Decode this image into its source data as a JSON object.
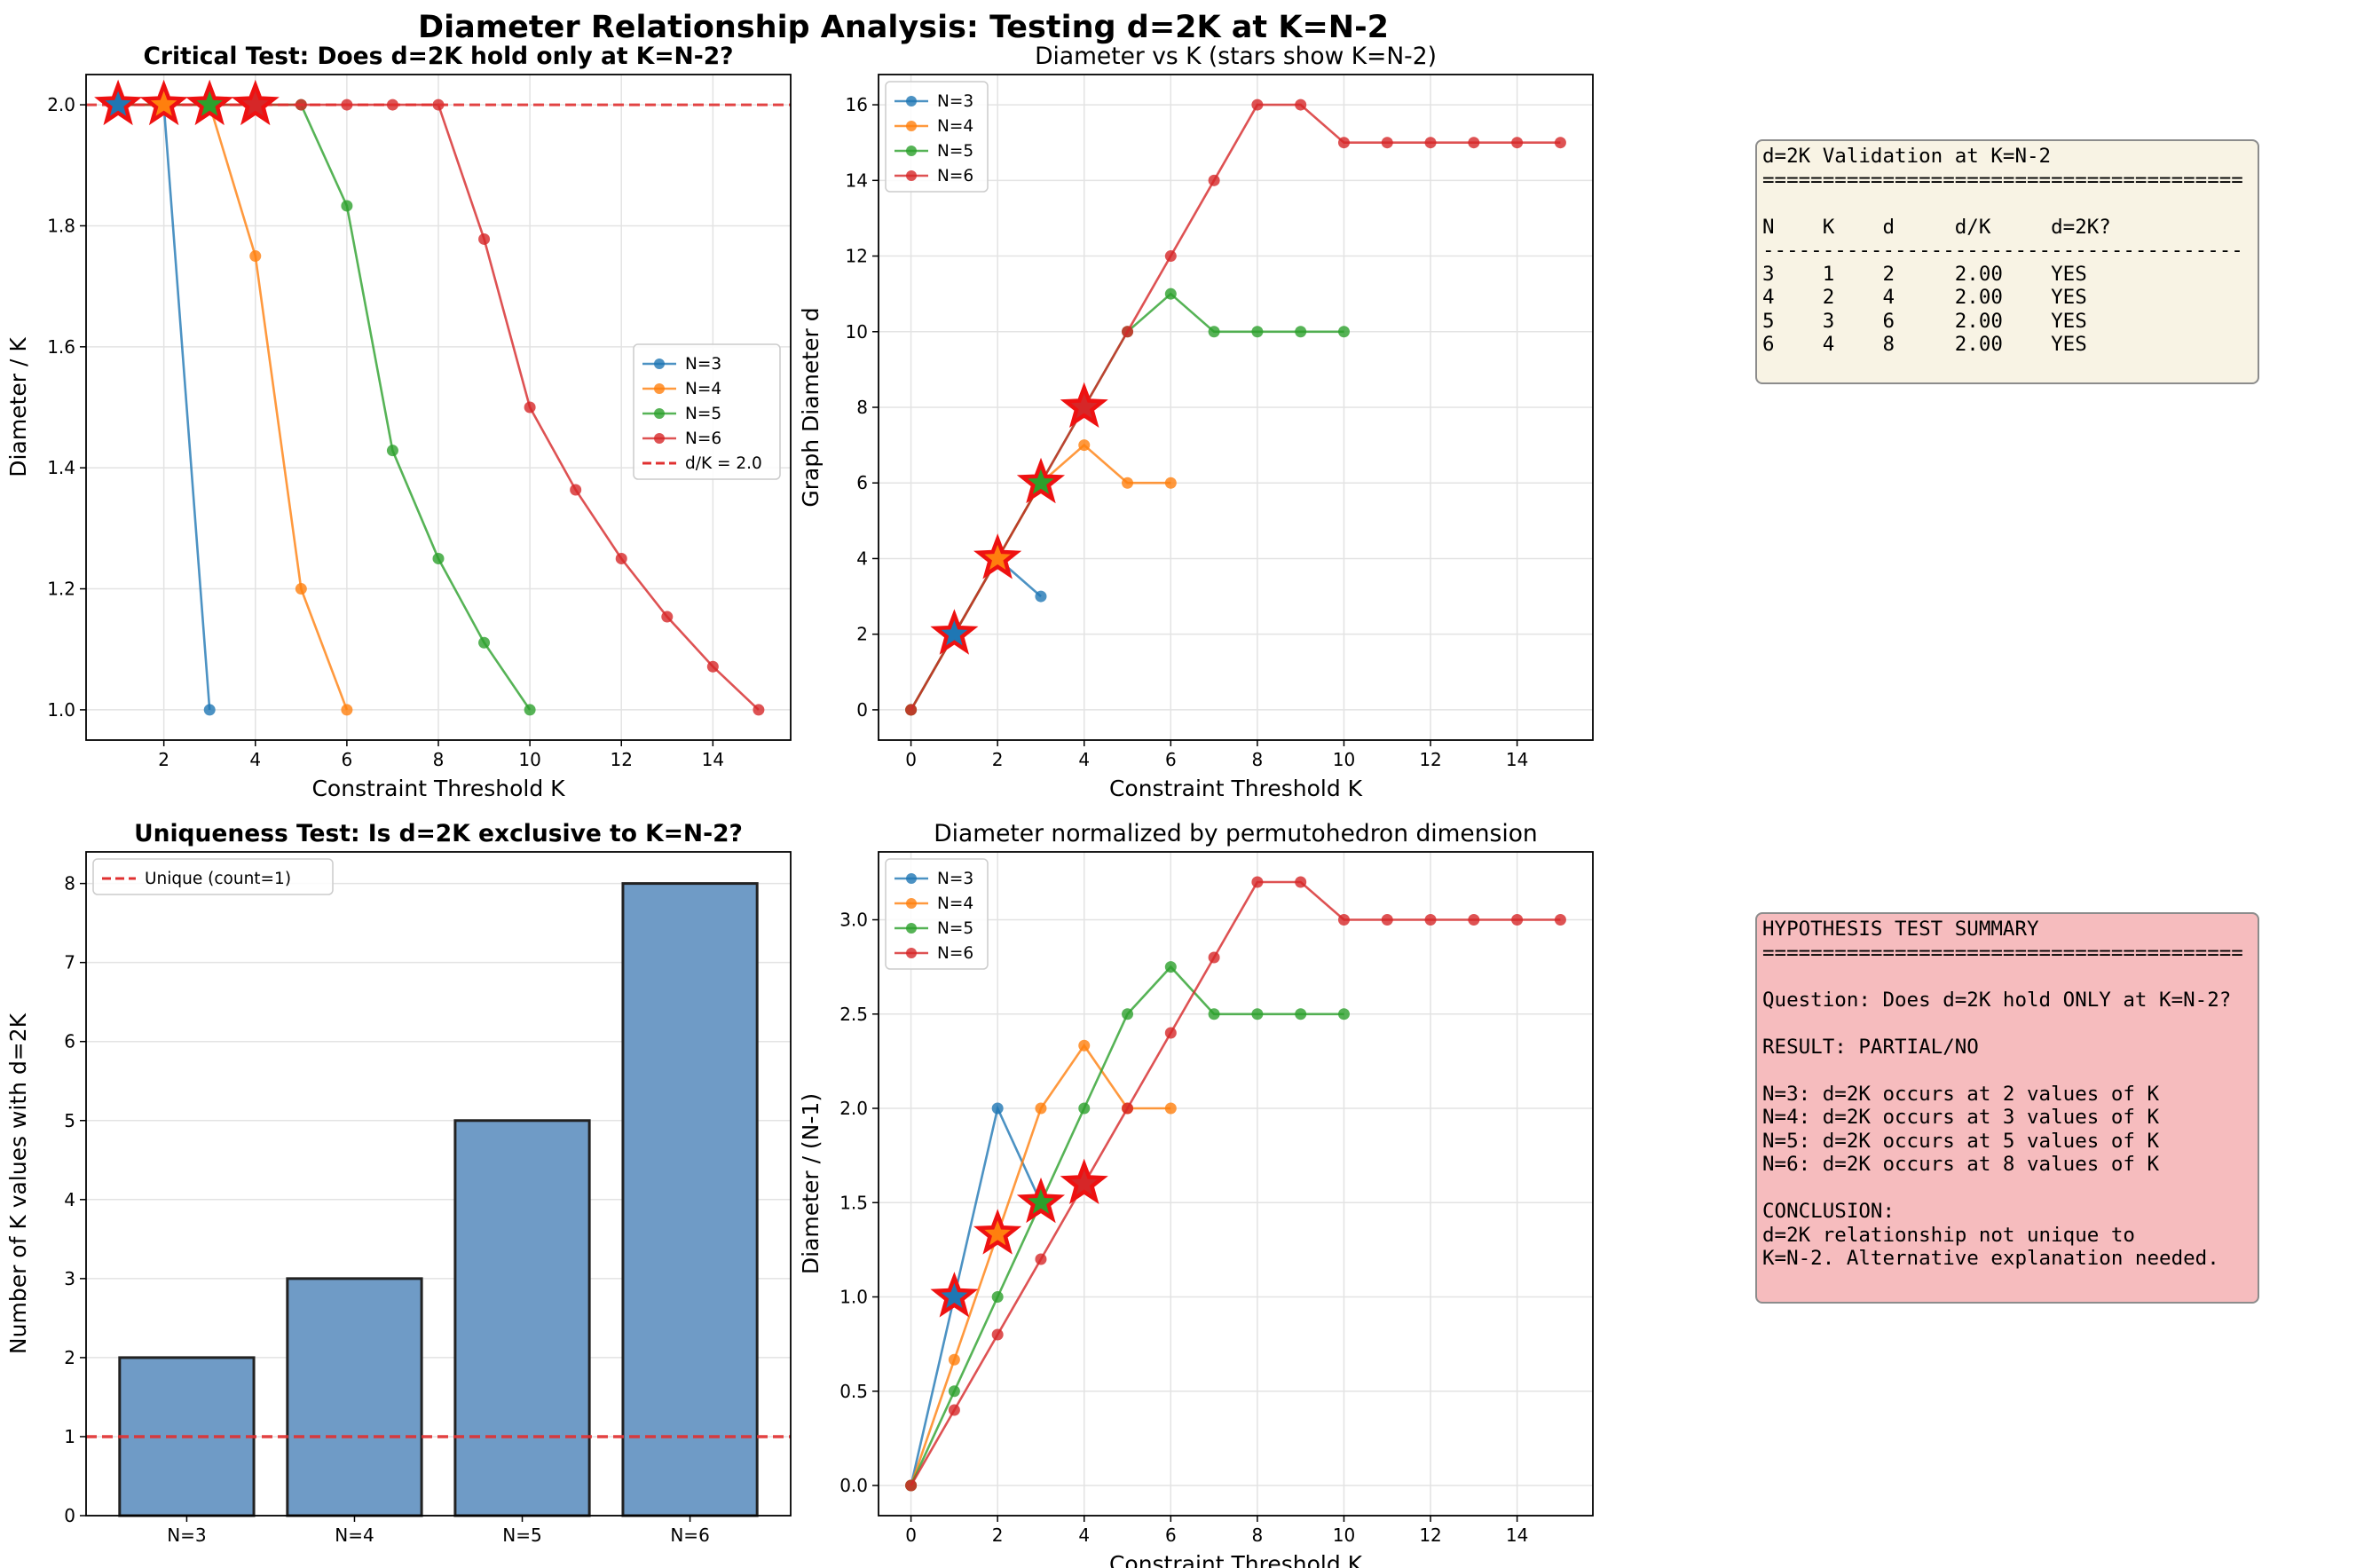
{
  "suptitle": "Diameter Relationship Analysis: Testing d=2K at K=N-2",
  "colors": {
    "N=3": "#1f77b4",
    "N=4": "#ff7f0e",
    "N=5": "#2ca02c",
    "N=6": "#d62728",
    "ref": "#e03030",
    "bar": "#6f9bc6"
  },
  "chart_data": [
    {
      "type": "line",
      "title": "Critical Test: Does d=2K hold only at K=N-2?",
      "title_bold": true,
      "xlabel": "Constraint Threshold K",
      "ylabel": "Diameter / K",
      "xlim": [
        0.3,
        15.7
      ],
      "ylim": [
        0.95,
        2.05
      ],
      "xticks": [
        2,
        4,
        6,
        8,
        10,
        12,
        14
      ],
      "yticks": [
        1.0,
        1.2,
        1.4,
        1.6,
        1.8,
        2.0
      ],
      "ytick_fmt": 1,
      "grid": true,
      "legend_position": "center-right",
      "legend": [
        "N=3",
        "N=4",
        "N=5",
        "N=6",
        "d/K = 2.0"
      ],
      "hline": {
        "y": 2.0,
        "label": "d/K = 2.0"
      },
      "series": [
        {
          "name": "N=3",
          "x": [
            1,
            2,
            3
          ],
          "y": [
            2.0,
            2.0,
            1.0
          ]
        },
        {
          "name": "N=4",
          "x": [
            1,
            2,
            3,
            4,
            5,
            6
          ],
          "y": [
            2.0,
            2.0,
            2.0,
            1.75,
            1.2,
            1.0
          ]
        },
        {
          "name": "N=5",
          "x": [
            1,
            2,
            3,
            4,
            5,
            6,
            7,
            8,
            9,
            10
          ],
          "y": [
            2.0,
            2.0,
            2.0,
            2.0,
            2.0,
            1.833,
            1.4286,
            1.25,
            1.111,
            1.0
          ]
        },
        {
          "name": "N=6",
          "x": [
            1,
            2,
            3,
            4,
            5,
            6,
            7,
            8,
            9,
            10,
            11,
            12,
            13,
            14,
            15
          ],
          "y": [
            2.0,
            2.0,
            2.0,
            2.0,
            2.0,
            2.0,
            2.0,
            2.0,
            1.778,
            1.5,
            1.3636,
            1.25,
            1.1538,
            1.0714,
            1.0
          ]
        }
      ],
      "stars": [
        {
          "x": 1,
          "y": 2.0,
          "series": "N=3"
        },
        {
          "x": 2,
          "y": 2.0,
          "series": "N=4"
        },
        {
          "x": 3,
          "y": 2.0,
          "series": "N=5"
        },
        {
          "x": 4,
          "y": 2.0,
          "series": "N=6"
        }
      ]
    },
    {
      "type": "line",
      "title": "Diameter vs K (stars show K=N-2)",
      "title_bold": false,
      "xlabel": "Constraint Threshold K",
      "ylabel": "Graph Diameter d",
      "xlim": [
        -0.75,
        15.75
      ],
      "ylim": [
        -0.8,
        16.8
      ],
      "xticks": [
        0,
        2,
        4,
        6,
        8,
        10,
        12,
        14
      ],
      "yticks": [
        0,
        2,
        4,
        6,
        8,
        10,
        12,
        14,
        16
      ],
      "ytick_fmt": 0,
      "grid": true,
      "legend_position": "upper-left",
      "legend": [
        "N=3",
        "N=4",
        "N=5",
        "N=6"
      ],
      "series": [
        {
          "name": "N=3",
          "x": [
            0,
            1,
            2,
            3
          ],
          "y": [
            0,
            2,
            4,
            3
          ]
        },
        {
          "name": "N=4",
          "x": [
            0,
            1,
            2,
            3,
            4,
            5,
            6
          ],
          "y": [
            0,
            2,
            4,
            6,
            7,
            6,
            6
          ]
        },
        {
          "name": "N=5",
          "x": [
            0,
            1,
            2,
            3,
            4,
            5,
            6,
            7,
            8,
            9,
            10
          ],
          "y": [
            0,
            2,
            4,
            6,
            8,
            10,
            11,
            10,
            10,
            10,
            10
          ]
        },
        {
          "name": "N=6",
          "x": [
            0,
            1,
            2,
            3,
            4,
            5,
            6,
            7,
            8,
            9,
            10,
            11,
            12,
            13,
            14,
            15
          ],
          "y": [
            0,
            2,
            4,
            6,
            8,
            10,
            12,
            14,
            16,
            16,
            15,
            15,
            15,
            15,
            15,
            15
          ]
        }
      ],
      "stars": [
        {
          "x": 1,
          "y": 2,
          "series": "N=3"
        },
        {
          "x": 2,
          "y": 4,
          "series": "N=4"
        },
        {
          "x": 3,
          "y": 6,
          "series": "N=5"
        },
        {
          "x": 4,
          "y": 8,
          "series": "N=6"
        }
      ]
    },
    {
      "type": "bar",
      "title": "Uniqueness Test: Is d=2K exclusive to K=N-2?",
      "title_bold": true,
      "xlabel": "",
      "ylabel": "Number of K values with d=2K",
      "categories": [
        "N=3",
        "N=4",
        "N=5",
        "N=6"
      ],
      "values": [
        2,
        3,
        5,
        8
      ],
      "ylim": [
        0,
        8.4
      ],
      "yticks": [
        0,
        1,
        2,
        3,
        4,
        5,
        6,
        7,
        8
      ],
      "ytick_fmt": 0,
      "grid": true,
      "legend_position": "upper-left",
      "legend": [
        "Unique (count=1)"
      ],
      "hline": {
        "y": 1,
        "label": "Unique (count=1)"
      }
    },
    {
      "type": "line",
      "title": "Diameter normalized by permutohedron dimension",
      "title_bold": false,
      "xlabel": "Constraint Threshold K",
      "ylabel": "Diameter / (N-1)",
      "xlim": [
        -0.75,
        15.75
      ],
      "ylim": [
        -0.16,
        3.36
      ],
      "xticks": [
        0,
        2,
        4,
        6,
        8,
        10,
        12,
        14
      ],
      "yticks": [
        0.0,
        0.5,
        1.0,
        1.5,
        2.0,
        2.5,
        3.0
      ],
      "ytick_fmt": 1,
      "grid": true,
      "legend_position": "upper-left",
      "legend": [
        "N=3",
        "N=4",
        "N=5",
        "N=6"
      ],
      "series": [
        {
          "name": "N=3",
          "x": [
            0,
            1,
            2,
            3
          ],
          "y": [
            0,
            1.0,
            2.0,
            1.5
          ]
        },
        {
          "name": "N=4",
          "x": [
            0,
            1,
            2,
            3,
            4,
            5,
            6
          ],
          "y": [
            0,
            0.667,
            1.333,
            2.0,
            2.333,
            2.0,
            2.0
          ]
        },
        {
          "name": "N=5",
          "x": [
            0,
            1,
            2,
            3,
            4,
            5,
            6,
            7,
            8,
            9,
            10
          ],
          "y": [
            0,
            0.5,
            1.0,
            1.5,
            2.0,
            2.5,
            2.75,
            2.5,
            2.5,
            2.5,
            2.5
          ]
        },
        {
          "name": "N=6",
          "x": [
            0,
            1,
            2,
            3,
            4,
            5,
            6,
            7,
            8,
            9,
            10,
            11,
            12,
            13,
            14,
            15
          ],
          "y": [
            0,
            0.4,
            0.8,
            1.2,
            1.6,
            2.0,
            2.4,
            2.8,
            3.2,
            3.2,
            3.0,
            3.0,
            3.0,
            3.0,
            3.0,
            3.0
          ]
        }
      ],
      "stars": [
        {
          "x": 1,
          "y": 1.0,
          "series": "N=3"
        },
        {
          "x": 2,
          "y": 1.333,
          "series": "N=4"
        },
        {
          "x": 3,
          "y": 1.5,
          "series": "N=5"
        },
        {
          "x": 4,
          "y": 1.6,
          "series": "N=6"
        }
      ]
    }
  ],
  "validation_table": {
    "text": "d=2K Validation at K=N-2\n========================================\n\nN    K    d     d/K     d=2K?\n----------------------------------------\n3    1    2     2.00    YES\n4    2    4     2.00    YES\n5    3    6     2.00    YES\n6    4    8     2.00    YES"
  },
  "summary": {
    "text": "HYPOTHESIS TEST SUMMARY\n========================================\n\nQuestion: Does d=2K hold ONLY at K=N-2?\n\nRESULT: PARTIAL/NO\n\nN=3: d=2K occurs at 2 values of K\nN=4: d=2K occurs at 3 values of K\nN=5: d=2K occurs at 5 values of K\nN=6: d=2K occurs at 8 values of K\n\nCONCLUSION:\nd=2K relationship not unique to\nK=N-2. Alternative explanation needed."
  }
}
